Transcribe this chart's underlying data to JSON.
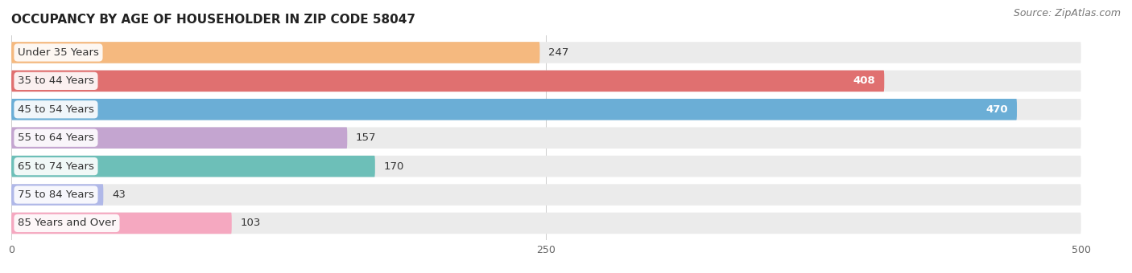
{
  "title": "OCCUPANCY BY AGE OF HOUSEHOLDER IN ZIP CODE 58047",
  "source": "Source: ZipAtlas.com",
  "categories": [
    "Under 35 Years",
    "35 to 44 Years",
    "45 to 54 Years",
    "55 to 64 Years",
    "65 to 74 Years",
    "75 to 84 Years",
    "85 Years and Over"
  ],
  "values": [
    247,
    408,
    470,
    157,
    170,
    43,
    103
  ],
  "bar_colors": [
    "#F5B97F",
    "#E07070",
    "#6BAED6",
    "#C4A5D0",
    "#6DBFB8",
    "#B0B8E8",
    "#F5A8C0"
  ],
  "bar_bg_color": "#EBEBEB",
  "xlim": [
    0,
    500
  ],
  "xticks": [
    0,
    250,
    500
  ],
  "background_color": "#FFFFFF",
  "title_fontsize": 11,
  "label_fontsize": 9.5,
  "value_fontsize": 9.5,
  "source_fontsize": 9
}
